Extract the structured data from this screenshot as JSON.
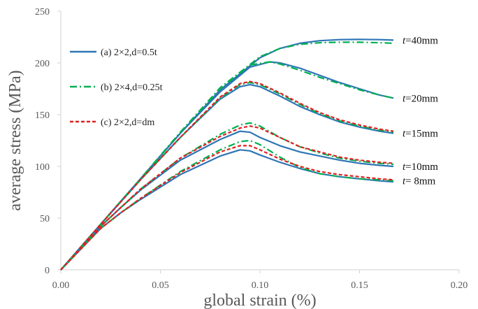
{
  "chart_data": {
    "type": "line",
    "title": "",
    "xlabel": "global strain (%)",
    "ylabel": "average stress (MPa)",
    "xlim": [
      0,
      0.2
    ],
    "ylim": [
      0,
      250
    ],
    "xticks": [
      0.0,
      0.05,
      0.1,
      0.15,
      0.2
    ],
    "yticks": [
      0,
      50,
      100,
      150,
      200,
      250
    ],
    "xtick_labels": [
      "0.00",
      "0.05",
      "0.10",
      "0.15",
      "0.20"
    ],
    "ytick_labels": [
      "0",
      "50",
      "100",
      "150",
      "200",
      "250"
    ],
    "grid": false,
    "legend_position": "top-left",
    "legend": [
      {
        "label": "(a) 2×2,d=0.5t",
        "color": "#2e75b6",
        "dash": "solid"
      },
      {
        "label": "(b) 2×4,d=0.25t",
        "color": "#00b050",
        "dash": "dashdot"
      },
      {
        "label": "(c) 2×2,d=dm",
        "color": "#e02020",
        "dash": "dashed"
      }
    ],
    "annotations": [
      {
        "italic": "t",
        "rest": "=40mm",
        "y": 222
      },
      {
        "italic": "t",
        "rest": "=20mm",
        "y": 166
      },
      {
        "italic": "t",
        "rest": "=15mm",
        "y": 132
      },
      {
        "italic": "t",
        "rest": "=10mm",
        "y": 100
      },
      {
        "italic": "t",
        "rest": "= 8mm",
        "y": 86
      }
    ],
    "series": [
      {
        "group": "t=40mm",
        "style": "a",
        "color": "#2e75b6",
        "dash": "solid",
        "x": [
          0,
          0.02,
          0.04,
          0.06,
          0.08,
          0.1,
          0.11,
          0.12,
          0.13,
          0.14,
          0.15,
          0.16,
          0.167
        ],
        "y": [
          0,
          44,
          88,
          132,
          174,
          205,
          214,
          219,
          221.5,
          222.5,
          222.8,
          222.5,
          222
        ]
      },
      {
        "group": "t=40mm",
        "style": "b",
        "color": "#00b050",
        "dash": "dashdot",
        "x": [
          0,
          0.02,
          0.04,
          0.06,
          0.08,
          0.1,
          0.11,
          0.12,
          0.13,
          0.14,
          0.15,
          0.16,
          0.167
        ],
        "y": [
          0,
          44,
          88,
          133,
          176,
          206,
          214,
          218,
          219.5,
          220,
          220,
          219.5,
          219
        ]
      },
      {
        "group": "t=20mm",
        "style": "a",
        "color": "#2e75b6",
        "dash": "solid",
        "x": [
          0,
          0.02,
          0.04,
          0.06,
          0.08,
          0.095,
          0.105,
          0.11,
          0.12,
          0.13,
          0.14,
          0.15,
          0.16,
          0.167
        ],
        "y": [
          0,
          44,
          88,
          132,
          172,
          196,
          201,
          200,
          195,
          188,
          181,
          175,
          169,
          166
        ]
      },
      {
        "group": "t=20mm",
        "style": "b",
        "color": "#00b050",
        "dash": "dashdot",
        "x": [
          0,
          0.02,
          0.04,
          0.06,
          0.08,
          0.095,
          0.105,
          0.11,
          0.12,
          0.13,
          0.14,
          0.15,
          0.16,
          0.167
        ],
        "y": [
          0,
          44,
          88,
          133,
          175,
          198,
          201,
          199,
          193,
          186,
          180,
          174,
          169,
          166
        ]
      },
      {
        "group": "t=15mm",
        "style": "a",
        "color": "#2e75b6",
        "dash": "solid",
        "x": [
          0,
          0.02,
          0.04,
          0.06,
          0.08,
          0.09,
          0.095,
          0.1,
          0.11,
          0.12,
          0.13,
          0.14,
          0.15,
          0.16,
          0.167
        ],
        "y": [
          0,
          44,
          87,
          128,
          165,
          177,
          179,
          177,
          168,
          158,
          150,
          143,
          138,
          134,
          132
        ]
      },
      {
        "group": "t=15mm",
        "style": "b",
        "color": "#00b050",
        "dash": "dashdot",
        "x": [
          0,
          0.02,
          0.04,
          0.06,
          0.08,
          0.09,
          0.095,
          0.1,
          0.11,
          0.12,
          0.13,
          0.14,
          0.15,
          0.16,
          0.167
        ],
        "y": [
          0,
          44,
          87,
          128,
          166,
          179,
          181,
          179,
          170,
          160,
          151,
          144,
          139,
          135,
          133
        ]
      },
      {
        "group": "t=15mm",
        "style": "c",
        "color": "#e02020",
        "dash": "dashed",
        "x": [
          0,
          0.02,
          0.04,
          0.06,
          0.08,
          0.09,
          0.095,
          0.1,
          0.11,
          0.12,
          0.13,
          0.14,
          0.15,
          0.16,
          0.167
        ],
        "y": [
          0,
          44,
          87,
          128,
          167,
          180,
          182,
          180,
          171,
          161,
          152,
          145,
          140,
          136,
          134
        ]
      },
      {
        "group": "t=10mm",
        "style": "a",
        "color": "#2e75b6",
        "dash": "solid",
        "x": [
          0,
          0.02,
          0.03,
          0.04,
          0.06,
          0.08,
          0.09,
          0.095,
          0.1,
          0.11,
          0.12,
          0.13,
          0.14,
          0.15,
          0.16,
          0.167
        ],
        "y": [
          0,
          42,
          60,
          77,
          106,
          126,
          134,
          133,
          128,
          120,
          114,
          110,
          106,
          103,
          101,
          100
        ]
      },
      {
        "group": "t=10mm",
        "style": "b",
        "color": "#00b050",
        "dash": "dashdot",
        "x": [
          0,
          0.02,
          0.03,
          0.04,
          0.06,
          0.08,
          0.09,
          0.095,
          0.1,
          0.11,
          0.12,
          0.13,
          0.14,
          0.15,
          0.16,
          0.167
        ],
        "y": [
          0,
          42,
          60,
          78,
          108,
          131,
          140,
          142,
          139,
          128,
          119,
          113,
          108,
          105,
          103,
          102
        ]
      },
      {
        "group": "t=10mm",
        "style": "c",
        "color": "#e02020",
        "dash": "dashed",
        "x": [
          0,
          0.02,
          0.03,
          0.04,
          0.06,
          0.08,
          0.09,
          0.095,
          0.1,
          0.11,
          0.12,
          0.13,
          0.14,
          0.15,
          0.16,
          0.167
        ],
        "y": [
          0,
          42,
          60,
          78,
          108,
          129,
          137,
          139,
          137,
          128,
          119,
          114,
          109,
          106,
          104,
          103
        ]
      },
      {
        "group": "t=8mm",
        "style": "a",
        "color": "#2e75b6",
        "dash": "solid",
        "x": [
          0,
          0.02,
          0.03,
          0.04,
          0.06,
          0.08,
          0.09,
          0.095,
          0.1,
          0.11,
          0.12,
          0.13,
          0.14,
          0.15,
          0.16,
          0.167
        ],
        "y": [
          0,
          40,
          55,
          68,
          92,
          110,
          116,
          115,
          111,
          104,
          98,
          93,
          90,
          88,
          86,
          85
        ]
      },
      {
        "group": "t=8mm",
        "style": "b",
        "color": "#00b050",
        "dash": "dashdot",
        "x": [
          0,
          0.02,
          0.03,
          0.04,
          0.06,
          0.08,
          0.09,
          0.095,
          0.1,
          0.11,
          0.12,
          0.13,
          0.14,
          0.15,
          0.16,
          0.167
        ],
        "y": [
          0,
          40,
          55,
          69,
          95,
          116,
          124,
          125,
          121,
          109,
          99,
          93,
          90,
          88,
          87,
          86
        ]
      },
      {
        "group": "t=8mm",
        "style": "c",
        "color": "#e02020",
        "dash": "dashed",
        "x": [
          0,
          0.02,
          0.03,
          0.04,
          0.06,
          0.08,
          0.09,
          0.095,
          0.1,
          0.11,
          0.12,
          0.13,
          0.14,
          0.15,
          0.16,
          0.167
        ],
        "y": [
          0,
          40,
          55,
          69,
          94,
          114,
          120,
          120,
          116,
          107,
          100,
          95,
          92,
          90,
          88,
          87
        ]
      }
    ]
  }
}
